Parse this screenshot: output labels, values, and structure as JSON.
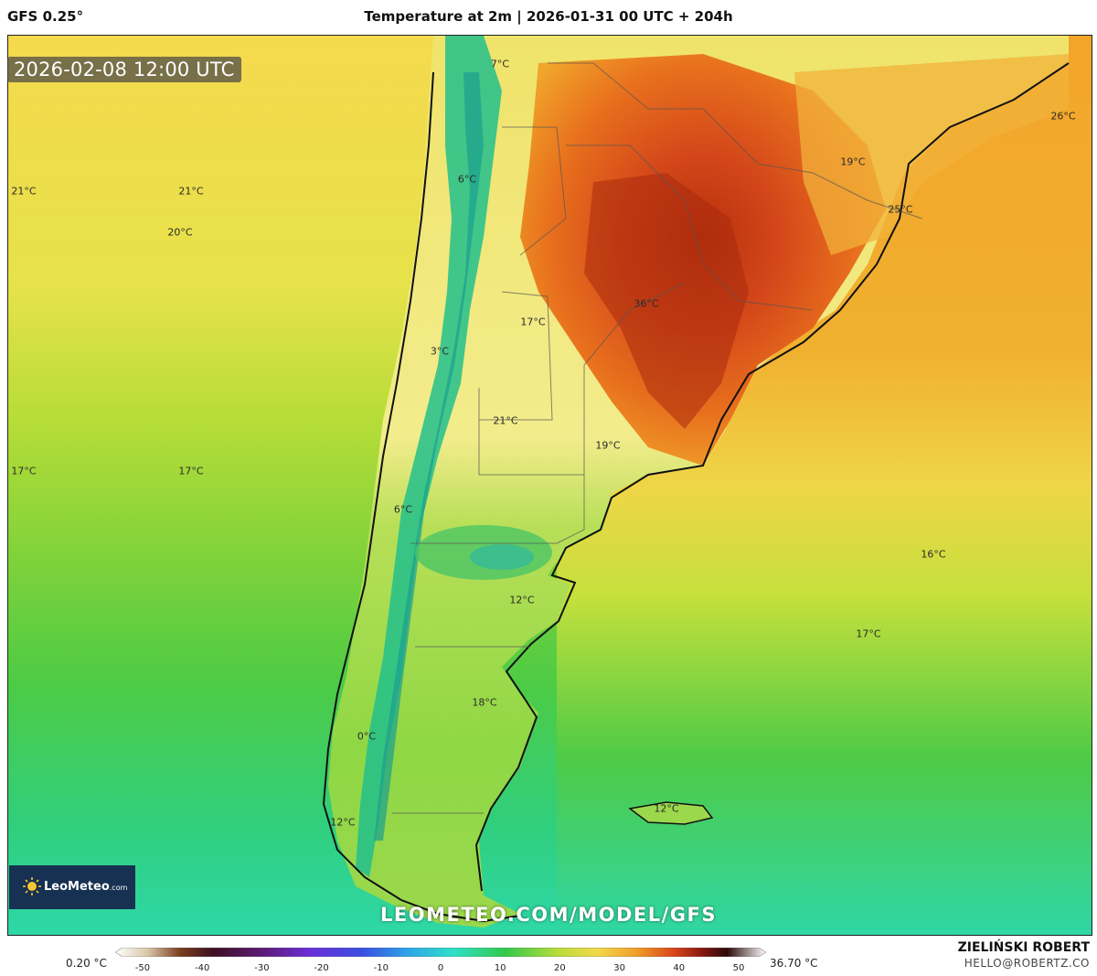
{
  "header": {
    "model": "GFS 0.25°",
    "title": "Temperature at 2m | 2026-01-31 00 UTC + 204h"
  },
  "map": {
    "valid_time": "2026-02-08 12:00 UTC",
    "watermark": "LEOMETEO.COM/MODEL/GFS",
    "labels": [
      {
        "text": "7°C"
      },
      {
        "text": "26°C"
      },
      {
        "text": "19°C"
      },
      {
        "text": "25°C"
      },
      {
        "text": "21°C"
      },
      {
        "text": "21°C"
      },
      {
        "text": "20°C"
      },
      {
        "text": "6°C"
      },
      {
        "text": "17°C"
      },
      {
        "text": "36°C"
      },
      {
        "text": "3°C"
      },
      {
        "text": "21°C"
      },
      {
        "text": "19°C"
      },
      {
        "text": "17°C"
      },
      {
        "text": "17°C"
      },
      {
        "text": "6°C"
      },
      {
        "text": "16°C"
      },
      {
        "text": "12°C"
      },
      {
        "text": "17°C"
      },
      {
        "text": "18°C"
      },
      {
        "text": "0°C"
      },
      {
        "text": "12°C"
      },
      {
        "text": "12°C"
      }
    ],
    "colors": {
      "ocean_north": "#f2d44a",
      "ocean_mid": "#c8e23a",
      "ocean_south": "#3ec94d",
      "ocean_far_south": "#2fd3a0",
      "heat_core": "#c83a10",
      "heat_warm": "#e8731a",
      "andes": "#1fb98a"
    }
  },
  "logo": {
    "text": "LeoMeteo",
    "suffix": ".com"
  },
  "colorbar": {
    "min_label": "0.20 °C",
    "max_label": "36.70 °C",
    "ticks": [
      "-50",
      "-40",
      "-30",
      "-20",
      "-10",
      "0",
      "10",
      "20",
      "30",
      "40",
      "50"
    ]
  },
  "credits": {
    "author": "ZIELIŃSKI ROBERT",
    "email": "HELLO@ROBERTZ.CO"
  }
}
